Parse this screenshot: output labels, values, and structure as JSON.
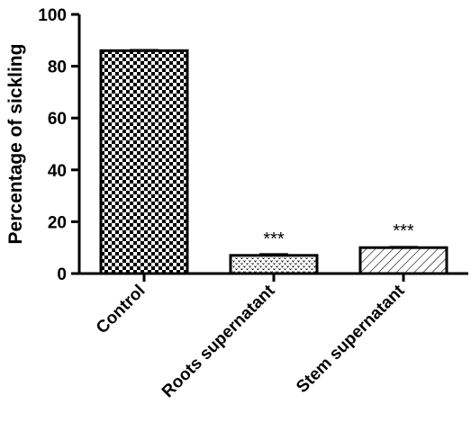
{
  "chart_data": {
    "type": "bar",
    "title": "",
    "xlabel": "",
    "ylabel": "Percentage of sickling",
    "ylim": [
      0,
      100
    ],
    "yticks": [
      0,
      20,
      40,
      60,
      80,
      100
    ],
    "categories": [
      "Control",
      "Roots supernatant",
      "Stem supernatant"
    ],
    "values": [
      86,
      7,
      10
    ],
    "errors": [
      0.3,
      0.5,
      0.3
    ],
    "annotations": [
      "",
      "***",
      "***"
    ],
    "patterns": [
      "checkerboard",
      "dotted",
      "diagonal-hatch"
    ],
    "colors": {
      "ink": "#000000",
      "background": "#ffffff"
    },
    "grid": false,
    "legend": "none"
  }
}
